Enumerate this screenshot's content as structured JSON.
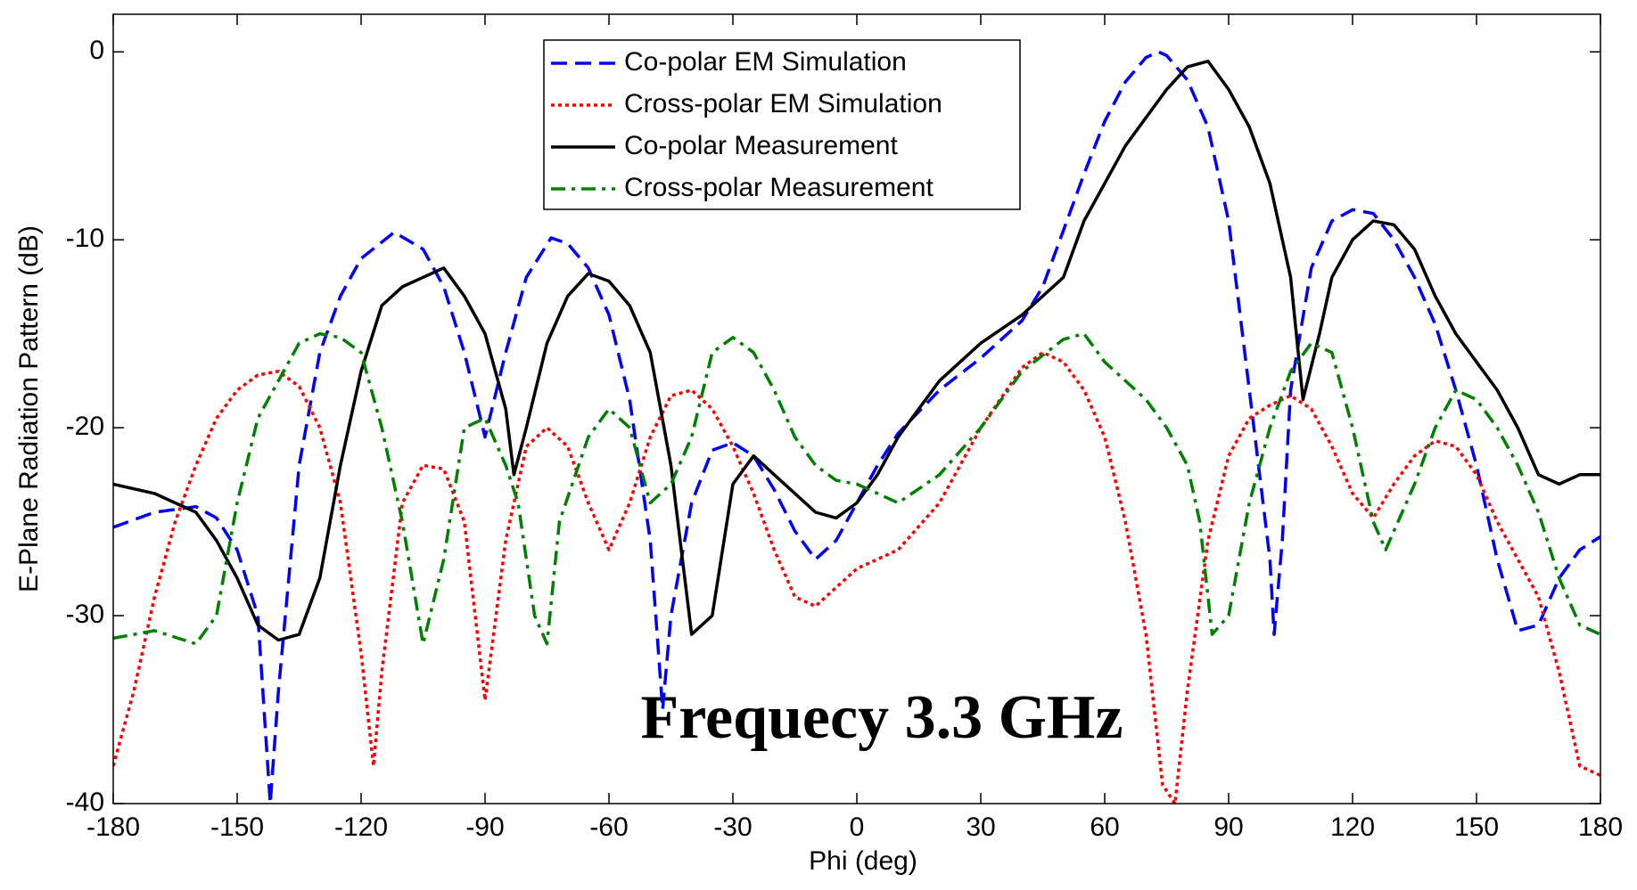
{
  "chart_data": {
    "type": "line",
    "xlabel": "Phi (deg)",
    "ylabel": "E-Plane Radiation Pattern (dB)",
    "annotation": "Frequecy 3.3 GHz",
    "xlim": [
      -180,
      180
    ],
    "ylim": [
      -40,
      2
    ],
    "xticks": [
      -180,
      -150,
      -120,
      -90,
      -60,
      -30,
      0,
      30,
      60,
      90,
      120,
      150,
      180
    ],
    "yticks": [
      0,
      -10,
      -20,
      -30,
      -40
    ],
    "legend": "top",
    "series": [
      {
        "name": "Co-polar EM Simulation",
        "color": "#0000ff",
        "style": "dashed",
        "x": [
          -180,
          -170,
          -160,
          -155,
          -150,
          -145,
          -142,
          -140,
          -135,
          -130,
          -125,
          -120,
          -112,
          -105,
          -100,
          -95,
          -90,
          -85,
          -80,
          -74,
          -70,
          -65,
          -60,
          -55,
          -50,
          -47,
          -45,
          -40,
          -35,
          -30,
          -25,
          -20,
          -15,
          -10,
          -5,
          0,
          5,
          10,
          20,
          30,
          40,
          45,
          50,
          55,
          60,
          65,
          70,
          73,
          75,
          80,
          85,
          90,
          95,
          100,
          101,
          103,
          105,
          110,
          115,
          120,
          125,
          130,
          135,
          140,
          145,
          150,
          155,
          160,
          165,
          170,
          175,
          180
        ],
        "values": [
          -25.3,
          -24.5,
          -24.2,
          -24.8,
          -26.5,
          -30,
          -40,
          -34,
          -22,
          -16,
          -13,
          -11,
          -9.6,
          -10.5,
          -12.5,
          -16,
          -20.5,
          -16,
          -12,
          -9.9,
          -10.2,
          -11.5,
          -14,
          -18.5,
          -26,
          -35,
          -30,
          -24,
          -21.2,
          -20.8,
          -21.5,
          -23.3,
          -25.5,
          -27,
          -26,
          -24,
          -22,
          -20.3,
          -18,
          -16.3,
          -14.3,
          -12.5,
          -9.5,
          -6.5,
          -3.7,
          -1.6,
          -0.3,
          0,
          -0.2,
          -1.5,
          -4,
          -9,
          -18,
          -27,
          -31,
          -26,
          -18,
          -11.5,
          -9,
          -8.4,
          -8.6,
          -10,
          -12,
          -14.5,
          -18,
          -22,
          -27,
          -30.8,
          -30.5,
          -28,
          -26.5,
          -25.8
        ]
      },
      {
        "name": "Cross-polar EM Simulation",
        "color": "#ff0000",
        "style": "dotted",
        "x": [
          -180,
          -175,
          -170,
          -165,
          -160,
          -155,
          -150,
          -145,
          -140,
          -135,
          -130,
          -125,
          -120,
          -117,
          -115,
          -110,
          -105,
          -100,
          -95,
          -90,
          -85,
          -80,
          -75,
          -70,
          -65,
          -60,
          -55,
          -50,
          -45,
          -40,
          -35,
          -30,
          -25,
          -20,
          -15,
          -10,
          -5,
          0,
          10,
          20,
          30,
          40,
          45,
          50,
          55,
          60,
          65,
          70,
          74,
          77,
          80,
          85,
          90,
          95,
          100,
          105,
          110,
          115,
          120,
          125,
          130,
          135,
          140,
          145,
          150,
          155,
          160,
          165,
          170,
          175,
          180
        ],
        "values": [
          -38,
          -34,
          -29,
          -25,
          -22,
          -19.5,
          -18,
          -17.2,
          -17,
          -17.8,
          -20,
          -24,
          -32,
          -38,
          -33,
          -24,
          -22,
          -22.2,
          -25,
          -34.5,
          -26,
          -21,
          -20,
          -21,
          -24,
          -26.5,
          -24,
          -20.5,
          -18.3,
          -18,
          -19,
          -21,
          -23.5,
          -26.5,
          -29,
          -29.5,
          -28.5,
          -27.5,
          -26.5,
          -24,
          -20,
          -16.8,
          -16,
          -16.5,
          -18,
          -20.5,
          -25,
          -31,
          -39,
          -40,
          -34,
          -26,
          -21.5,
          -19.5,
          -18.8,
          -18.3,
          -19,
          -21,
          -23.5,
          -24.8,
          -23,
          -21.5,
          -20.7,
          -21,
          -22.5,
          -25,
          -27,
          -29,
          -33,
          -38,
          -38.5
        ]
      },
      {
        "name": "Co-polar Measurement",
        "color": "#000000",
        "style": "solid",
        "x": [
          -180,
          -170,
          -165,
          -160,
          -155,
          -150,
          -145,
          -140,
          -135,
          -130,
          -125,
          -120,
          -115,
          -110,
          -105,
          -100,
          -95,
          -90,
          -85,
          -83,
          -80,
          -75,
          -70,
          -65,
          -60,
          -55,
          -50,
          -45,
          -40,
          -35,
          -30,
          -25,
          -20,
          -15,
          -10,
          -5,
          0,
          5,
          10,
          20,
          30,
          40,
          50,
          55,
          60,
          65,
          70,
          75,
          80,
          85,
          90,
          95,
          100,
          105,
          108,
          112,
          115,
          120,
          125,
          130,
          135,
          140,
          145,
          150,
          155,
          160,
          165,
          170,
          175,
          180
        ],
        "values": [
          -23,
          -23.5,
          -24,
          -24.5,
          -26,
          -28,
          -30.5,
          -31.3,
          -31,
          -28,
          -22,
          -17,
          -13.5,
          -12.5,
          -12,
          -11.5,
          -13,
          -15,
          -19,
          -22.5,
          -20,
          -15.5,
          -13,
          -11.8,
          -12.2,
          -13.5,
          -16,
          -22,
          -31,
          -30,
          -23,
          -21.5,
          -22.5,
          -23.5,
          -24.5,
          -24.8,
          -24,
          -22.5,
          -20.5,
          -17.5,
          -15.5,
          -14,
          -12,
          -9,
          -7,
          -5,
          -3.5,
          -2,
          -0.8,
          -0.5,
          -2,
          -4,
          -7,
          -12,
          -18.5,
          -15,
          -12,
          -10,
          -9,
          -9.2,
          -10.5,
          -13,
          -15,
          -16.5,
          -18,
          -20,
          -22.5,
          -23,
          -22.5,
          -22.5
        ]
      },
      {
        "name": "Cross-polar Measurement",
        "color": "#008000",
        "style": "dashdot",
        "x": [
          -180,
          -170,
          -160,
          -155,
          -150,
          -145,
          -140,
          -135,
          -130,
          -125,
          -120,
          -115,
          -110,
          -105,
          -100,
          -95,
          -90,
          -85,
          -82,
          -78,
          -75,
          -72,
          -65,
          -60,
          -55,
          -50,
          -45,
          -40,
          -35,
          -30,
          -25,
          -20,
          -15,
          -10,
          -5,
          0,
          5,
          10,
          20,
          30,
          40,
          50,
          55,
          60,
          70,
          75,
          80,
          83,
          86,
          90,
          95,
          100,
          105,
          110,
          115,
          120,
          125,
          128,
          135,
          140,
          145,
          150,
          155,
          160,
          165,
          170,
          175,
          180
        ],
        "values": [
          -31.2,
          -30.8,
          -31.5,
          -30,
          -24,
          -19.5,
          -17.5,
          -15.5,
          -15,
          -15.2,
          -16,
          -20,
          -25,
          -31.5,
          -27,
          -20,
          -19.5,
          -22,
          -24,
          -30,
          -31.5,
          -25,
          -20.5,
          -19,
          -20,
          -24,
          -23,
          -20.5,
          -16,
          -15.2,
          -16,
          -18,
          -20.5,
          -22,
          -22.8,
          -23,
          -23.5,
          -24,
          -22.5,
          -20,
          -17,
          -15.3,
          -15,
          -16.5,
          -18.5,
          -20,
          -22,
          -25,
          -31,
          -30,
          -24,
          -20,
          -17,
          -15.5,
          -16,
          -20,
          -25,
          -26.5,
          -23,
          -20,
          -18,
          -18.5,
          -20,
          -22,
          -24.5,
          -28,
          -30.5,
          -31
        ]
      }
    ]
  }
}
